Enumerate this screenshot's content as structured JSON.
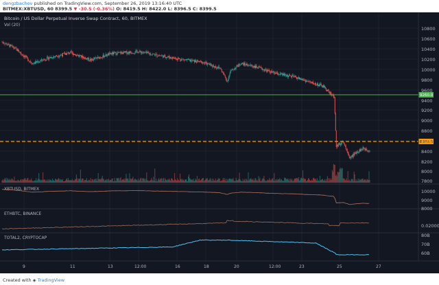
{
  "header": {
    "author": "dengzbachov",
    "published": " published on TradingView.com, September 26, 2019 13:16:40 UTC",
    "symbol": "BITMEX:XBTUSD, 60",
    "price": "8399.5",
    "change": "▼ -30.5 (-0.36%)",
    "ohlc": "O: 8419.5  H: 8422.0  L: 8396.5  C: 8399.5"
  },
  "footer": {
    "created": "Created with",
    "brand": "TradingView"
  },
  "chart": {
    "title": "Bitcoin / US Dollar Perpetual Inverse Swap Contract, 60, BITMEX",
    "vol_label": "Vol (20)",
    "current_price_tag": "8399.5",
    "green_level_tag": "9260.0",
    "colors": {
      "background": "#131722",
      "up": "#26a69a",
      "down": "#ef5350",
      "green_line": "#4caf50",
      "orange_line": "#ff9800",
      "pane2": "#b5725f",
      "pane3": "#9c6e5c",
      "pane4": "#4fc3f7"
    },
    "price_ticks": [
      "10800",
      "10600",
      "10400",
      "10200",
      "10000",
      "9800",
      "9600",
      "9400",
      "9200",
      "9000",
      "8800",
      "8600",
      "8400",
      "8200",
      "8000",
      "7800"
    ],
    "x_ticks": [
      "9",
      "11",
      "13",
      "12:00",
      "16",
      "18",
      "20",
      "12:00",
      "23",
      "25",
      "27"
    ]
  },
  "panes": [
    {
      "label": "XBTUSD, BITMEX",
      "ticks": [
        "10000",
        "9000",
        "8000"
      ]
    },
    {
      "label": "ETHBTC, BINANCE",
      "ticks": [
        "0.02000"
      ]
    },
    {
      "label": "TOTAL2, CRYPTOCAP",
      "ticks": [
        "80B",
        "70B",
        "60B"
      ]
    }
  ],
  "chart_data": {
    "type": "line",
    "title": "Bitcoin / US Dollar Perpetual Inverse Swap Contract, 60, BITMEX",
    "ylim": [
      7750,
      10900
    ],
    "horizontal_levels": [
      9260,
      8399.5
    ],
    "series": [
      {
        "x": [
          "9",
          "11",
          "13",
          "12:00",
          "16",
          "18",
          "20",
          "12:00",
          "23",
          "25",
          "27"
        ],
        "values": [
          10600,
          10200,
          10350,
          10250,
          10400,
          10200,
          9900,
          10200,
          10000,
          9600,
          8500
        ]
      }
    ]
  }
}
